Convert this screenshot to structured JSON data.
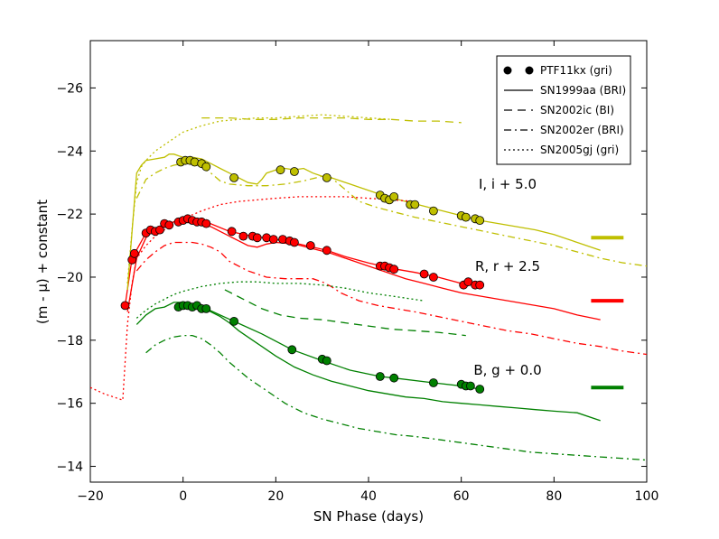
{
  "chart_data": {
    "type": "line",
    "xlabel": "SN Phase (days)",
    "ylabel": "(m - μ) + constant",
    "xlim": [
      -20,
      100
    ],
    "ylim": [
      -13.5,
      -27.5
    ],
    "y_inverted": true,
    "xticks": [
      -20,
      0,
      20,
      40,
      60,
      80,
      100
    ],
    "xtick_labels": [
      "−20",
      "0",
      "20",
      "40",
      "60",
      "80",
      "100"
    ],
    "yticks": [
      -14,
      -16,
      -18,
      -20,
      -22,
      -24,
      -26
    ],
    "ytick_labels": [
      "−14",
      "−16",
      "−18",
      "−20",
      "−22",
      "−24",
      "−26"
    ],
    "legend_position": "top-right",
    "legend": [
      {
        "label": "PTF11kx (gri)",
        "style": "markers"
      },
      {
        "label": "SN1999aa (BRI)",
        "style": "solid"
      },
      {
        "label": "SN2002ic (BI)",
        "style": "dashed"
      },
      {
        "label": "SN2002er (BRI)",
        "style": "dashdot"
      },
      {
        "label": "SN2005gj (gri)",
        "style": "dotted"
      }
    ],
    "annotations": [
      {
        "text": "I, i + 5.0",
        "x": 70,
        "y": -22.8
      },
      {
        "text": "R, r + 2.5",
        "x": 70,
        "y": -20.2
      },
      {
        "text": "B, g + 0.0",
        "x": 70,
        "y": -16.9
      }
    ],
    "colors": {
      "i": "#bfbf00",
      "r": "#ff0000",
      "g": "#008000"
    },
    "marker_edge": "#000000",
    "band_marks": [
      {
        "band": "i",
        "y": -21.25,
        "x": [
          88,
          95
        ]
      },
      {
        "band": "r",
        "y": -19.25,
        "x": [
          88,
          95
        ]
      },
      {
        "band": "g",
        "y": -16.5,
        "x": [
          88,
          95
        ]
      }
    ],
    "series": [
      {
        "name": "PTF11kx i",
        "band": "i",
        "style": "markers",
        "x": [
          -0.5,
          0.5,
          1.5,
          2.5,
          4.0,
          5.0,
          11.0,
          21.0,
          24.0,
          31.0,
          42.5,
          43.5,
          44.5,
          45.5,
          49.0,
          50.0,
          54.0,
          60.0,
          61.0,
          63.0,
          64.0
        ],
        "y": [
          -23.65,
          -23.7,
          -23.7,
          -23.65,
          -23.6,
          -23.5,
          -23.15,
          -23.4,
          -23.35,
          -23.15,
          -22.6,
          -22.5,
          -22.45,
          -22.55,
          -22.3,
          -22.3,
          -22.1,
          -21.95,
          -21.9,
          -21.85,
          -21.8
        ]
      },
      {
        "name": "PTF11kx r",
        "band": "r",
        "style": "markers",
        "x": [
          -12.5,
          -11.0,
          -10.5,
          -8.0,
          -7.0,
          -6.0,
          -5.0,
          -4.0,
          -3.0,
          -1.0,
          0.0,
          1.0,
          2.0,
          3.0,
          4.0,
          5.0,
          10.5,
          13.0,
          15.0,
          16.0,
          18.0,
          19.5,
          21.5,
          23.0,
          24.0,
          27.5,
          31.0,
          42.5,
          43.5,
          44.5,
          45.5,
          52.0,
          54.0,
          60.5,
          61.5,
          63.0,
          64.0
        ],
        "y": [
          -19.1,
          -20.55,
          -20.75,
          -21.4,
          -21.5,
          -21.45,
          -21.5,
          -21.7,
          -21.65,
          -21.75,
          -21.8,
          -21.85,
          -21.8,
          -21.75,
          -21.75,
          -21.7,
          -21.45,
          -21.3,
          -21.3,
          -21.25,
          -21.25,
          -21.2,
          -21.2,
          -21.15,
          -21.1,
          -21.0,
          -20.85,
          -20.35,
          -20.35,
          -20.3,
          -20.25,
          -20.1,
          -20.0,
          -19.75,
          -19.85,
          -19.75,
          -19.75
        ]
      },
      {
        "name": "PTF11kx g",
        "band": "g",
        "style": "markers",
        "x": [
          -1.0,
          0.0,
          1.0,
          2.0,
          3.0,
          4.0,
          5.0,
          11.0,
          23.5,
          30.0,
          31.0,
          42.5,
          45.5,
          54.0,
          60.0,
          61.0,
          62.0,
          64.0
        ],
        "y": [
          -19.05,
          -19.1,
          -19.1,
          -19.05,
          -19.1,
          -19.0,
          -19.0,
          -18.6,
          -17.7,
          -17.4,
          -17.35,
          -16.85,
          -16.8,
          -16.65,
          -16.6,
          -16.55,
          -16.55,
          -16.45
        ]
      },
      {
        "name": "PTF11kx r fit",
        "band": "r",
        "style": "solid",
        "x": [
          -12.5,
          -11.0,
          -8.0,
          -5.0,
          -2.0,
          0.0,
          2.0,
          5.0,
          10.0,
          15.0,
          20.0,
          25.0,
          31.0,
          35.0,
          40.0,
          43.0,
          46.0,
          50.0,
          55.0,
          60.0,
          64.0
        ],
        "y": [
          -19.1,
          -20.6,
          -21.4,
          -21.55,
          -21.75,
          -21.8,
          -21.85,
          -21.75,
          -21.45,
          -21.3,
          -21.2,
          -21.05,
          -20.85,
          -20.65,
          -20.45,
          -20.35,
          -20.25,
          -20.15,
          -20.0,
          -19.8,
          -19.75
        ]
      },
      {
        "name": "PTF11kx g fit",
        "band": "g",
        "style": "solid",
        "x": [
          -1.0,
          3.0,
          5.0,
          11.0,
          17.0,
          23.5,
          30.0,
          36.0,
          42.5,
          45.5,
          54.0,
          60.0,
          64.0
        ],
        "y": [
          -19.05,
          -19.05,
          -19.0,
          -18.6,
          -18.2,
          -17.7,
          -17.35,
          -17.05,
          -16.85,
          -16.8,
          -16.65,
          -16.55,
          -16.45
        ]
      },
      {
        "name": "SN1999aa I",
        "band": "i",
        "style": "solid",
        "x": [
          -12.0,
          -10.0,
          -9.0,
          -8.0,
          -6.0,
          -4.0,
          -3.0,
          -2.0,
          -1.0,
          0.0,
          2.0,
          4.0,
          6.0,
          8.0,
          10.0,
          12.0,
          14.0,
          16.0,
          17.0,
          18.0,
          20.0,
          22.0,
          24.0,
          26.0,
          28.0,
          30.0,
          32.0,
          34.0,
          36.0,
          38.0,
          40.0,
          44.0,
          48.0,
          52.0,
          56.0,
          60.0,
          64.0,
          68.0,
          72.0,
          76.0,
          80.0,
          85.0,
          90.0
        ],
        "y": [
          -19.6,
          -23.3,
          -23.55,
          -23.7,
          -23.75,
          -23.8,
          -23.9,
          -23.9,
          -23.85,
          -23.8,
          -23.8,
          -23.75,
          -23.6,
          -23.45,
          -23.3,
          -23.15,
          -23.0,
          -22.95,
          -23.1,
          -23.3,
          -23.4,
          -23.45,
          -23.4,
          -23.45,
          -23.3,
          -23.2,
          -23.15,
          -23.05,
          -22.95,
          -22.85,
          -22.75,
          -22.55,
          -22.4,
          -22.25,
          -22.1,
          -21.95,
          -21.8,
          -21.7,
          -21.6,
          -21.5,
          -21.35,
          -21.1,
          -20.85
        ]
      },
      {
        "name": "SN1999aa R",
        "band": "r",
        "style": "solid",
        "x": [
          -12.0,
          -10.0,
          -8.0,
          -6.0,
          -4.0,
          -2.0,
          0.0,
          2.0,
          4.0,
          6.0,
          8.0,
          10.0,
          12.0,
          14.0,
          16.0,
          18.0,
          20.0,
          24.0,
          28.0,
          32.0,
          36.0,
          40.0,
          44.0,
          48.0,
          52.0,
          56.0,
          60.0,
          64.0,
          68.0,
          72.0,
          76.0,
          80.0,
          85.0,
          90.0
        ],
        "y": [
          -18.9,
          -20.6,
          -21.25,
          -21.55,
          -21.65,
          -21.75,
          -21.75,
          -21.75,
          -21.7,
          -21.6,
          -21.45,
          -21.3,
          -21.15,
          -21.0,
          -20.95,
          -21.05,
          -21.1,
          -21.05,
          -20.9,
          -20.75,
          -20.55,
          -20.35,
          -20.15,
          -19.95,
          -19.8,
          -19.65,
          -19.5,
          -19.4,
          -19.3,
          -19.2,
          -19.1,
          -19.0,
          -18.8,
          -18.65
        ]
      },
      {
        "name": "SN1999aa B",
        "band": "g",
        "style": "solid",
        "x": [
          -10.0,
          -8.0,
          -6.0,
          -4.0,
          -2.0,
          0.0,
          2.0,
          4.0,
          6.0,
          8.0,
          10.0,
          12.0,
          14.0,
          16.0,
          18.0,
          20.0,
          24.0,
          28.0,
          32.0,
          36.0,
          40.0,
          44.0,
          48.0,
          52.0,
          56.0,
          60.0,
          64.0,
          68.0,
          72.0,
          76.0,
          80.0,
          85.0,
          90.0
        ],
        "y": [
          -18.5,
          -18.8,
          -19.0,
          -19.05,
          -19.2,
          -19.2,
          -19.15,
          -19.05,
          -18.9,
          -18.75,
          -18.55,
          -18.3,
          -18.1,
          -17.9,
          -17.7,
          -17.5,
          -17.15,
          -16.9,
          -16.7,
          -16.55,
          -16.4,
          -16.3,
          -16.2,
          -16.15,
          -16.05,
          -16.0,
          -15.95,
          -15.9,
          -15.85,
          -15.8,
          -15.75,
          -15.7,
          -15.45
        ]
      },
      {
        "name": "SN2002ic I",
        "band": "i",
        "style": "dashed",
        "x": [
          4.0,
          10.0,
          15.0,
          20.0,
          25.0,
          30.0,
          35.0,
          40.0,
          45.0,
          50.0,
          55.0,
          60.0
        ],
        "y": [
          -25.05,
          -25.05,
          -25.0,
          -25.0,
          -25.05,
          -25.05,
          -25.05,
          -25.0,
          -25.0,
          -24.95,
          -24.95,
          -24.9
        ]
      },
      {
        "name": "SN2002ic B",
        "band": "g",
        "style": "dashed",
        "x": [
          9.0,
          13.0,
          17.0,
          21.0,
          25.0,
          30.0,
          35.0,
          40.0,
          45.0,
          50.0,
          55.0,
          61.0
        ],
        "y": [
          -19.6,
          -19.3,
          -19.0,
          -18.8,
          -18.7,
          -18.65,
          -18.55,
          -18.45,
          -18.35,
          -18.3,
          -18.25,
          -18.15
        ]
      },
      {
        "name": "SN2002er I",
        "band": "i",
        "style": "dashdot",
        "x": [
          -10.0,
          -8.0,
          -6.0,
          -4.0,
          -2.0,
          0.0,
          2.0,
          4.0,
          6.0,
          8.0,
          10.0,
          14.0,
          18.0,
          22.0,
          26.0,
          30.0,
          32.0,
          34.0,
          38.0,
          42.0,
          46.0,
          50.0,
          55.0,
          60.0,
          65.0,
          70.0,
          75.0,
          80.0,
          85.0,
          90.0,
          95.0,
          100.0
        ],
        "y": [
          -22.5,
          -23.1,
          -23.3,
          -23.45,
          -23.55,
          -23.6,
          -23.6,
          -23.5,
          -23.3,
          -23.05,
          -22.95,
          -22.9,
          -22.9,
          -22.95,
          -23.05,
          -23.2,
          -23.15,
          -22.9,
          -22.4,
          -22.2,
          -22.05,
          -21.9,
          -21.75,
          -21.6,
          -21.45,
          -21.3,
          -21.15,
          -21.0,
          -20.8,
          -20.6,
          -20.45,
          -20.35
        ]
      },
      {
        "name": "SN2002er R",
        "band": "r",
        "style": "dashdot",
        "x": [
          -10.0,
          -8.0,
          -6.0,
          -4.0,
          -2.0,
          0.0,
          2.0,
          4.0,
          6.0,
          8.0,
          10.0,
          14.0,
          18.0,
          22.0,
          26.0,
          28.0,
          30.0,
          32.0,
          34.0,
          38.0,
          42.0,
          46.0,
          50.0,
          55.0,
          60.0,
          65.0,
          70.0,
          75.0,
          80.0,
          85.0,
          90.0,
          95.0,
          100.0
        ],
        "y": [
          -20.2,
          -20.55,
          -20.8,
          -21.0,
          -21.1,
          -21.1,
          -21.1,
          -21.05,
          -20.95,
          -20.8,
          -20.5,
          -20.2,
          -20.0,
          -19.95,
          -19.95,
          -19.95,
          -19.85,
          -19.7,
          -19.5,
          -19.25,
          -19.1,
          -19.0,
          -18.9,
          -18.75,
          -18.6,
          -18.45,
          -18.3,
          -18.2,
          -18.05,
          -17.9,
          -17.8,
          -17.65,
          -17.55
        ]
      },
      {
        "name": "SN2002er B",
        "band": "g",
        "style": "dashdot",
        "x": [
          -8.0,
          -6.0,
          -4.0,
          -2.0,
          0.0,
          2.0,
          4.0,
          6.0,
          8.0,
          10.0,
          14.0,
          18.0,
          22.0,
          26.0,
          30.0,
          34.0,
          38.0,
          42.0,
          46.0,
          50.0,
          55.0,
          60.0,
          65.0,
          70.0,
          75.0,
          80.0,
          85.0,
          90.0,
          95.0,
          100.0
        ],
        "y": [
          -17.6,
          -17.85,
          -18.0,
          -18.1,
          -18.15,
          -18.15,
          -18.05,
          -17.85,
          -17.6,
          -17.3,
          -16.8,
          -16.4,
          -16.0,
          -15.7,
          -15.5,
          -15.35,
          -15.2,
          -15.1,
          -15.0,
          -14.95,
          -14.85,
          -14.75,
          -14.65,
          -14.55,
          -14.45,
          -14.4,
          -14.35,
          -14.3,
          -14.25,
          -14.2
        ]
      },
      {
        "name": "SN2005gj i",
        "band": "i",
        "style": "dotted",
        "x": [
          -12.0,
          -11.0,
          -10.0,
          -9.0,
          -8.0,
          -6.0,
          -4.0,
          -2.0,
          0.0,
          4.0,
          8.0,
          12.0,
          16.0,
          20.0,
          25.0,
          30.0,
          35.0,
          40.0,
          45.0
        ],
        "y": [
          -19.8,
          -21.5,
          -23.0,
          -23.5,
          -23.7,
          -24.0,
          -24.2,
          -24.4,
          -24.6,
          -24.8,
          -24.95,
          -25.0,
          -25.05,
          -25.05,
          -25.1,
          -25.15,
          -25.1,
          -25.05,
          -25.0
        ]
      },
      {
        "name": "SN2005gj r",
        "band": "r",
        "style": "dotted",
        "x": [
          -20.0,
          -17.0,
          -15.0,
          -13.0,
          -12.0,
          -11.0,
          -10.0,
          -8.0,
          -6.0,
          -4.0,
          -2.0,
          0.0,
          4.0,
          8.0,
          12.0,
          16.0,
          20.0,
          25.0,
          30.0,
          35.0,
          40.0,
          45.0,
          50.0
        ],
        "y": [
          -16.5,
          -16.3,
          -16.2,
          -16.1,
          -18.5,
          -19.8,
          -20.6,
          -21.0,
          -21.3,
          -21.5,
          -21.7,
          -21.85,
          -22.1,
          -22.3,
          -22.4,
          -22.45,
          -22.5,
          -22.55,
          -22.55,
          -22.55,
          -22.5,
          -22.45,
          -22.4
        ]
      },
      {
        "name": "SN2005gj g",
        "band": "g",
        "style": "dotted",
        "x": [
          -10.0,
          -8.0,
          -6.0,
          -4.0,
          -2.0,
          0.0,
          4.0,
          8.0,
          12.0,
          16.0,
          20.0,
          25.0,
          30.0,
          35.0,
          40.0,
          45.0,
          52.0
        ],
        "y": [
          -18.7,
          -18.95,
          -19.15,
          -19.3,
          -19.45,
          -19.55,
          -19.7,
          -19.8,
          -19.85,
          -19.85,
          -19.8,
          -19.8,
          -19.75,
          -19.65,
          -19.5,
          -19.4,
          -19.25
        ]
      }
    ]
  }
}
